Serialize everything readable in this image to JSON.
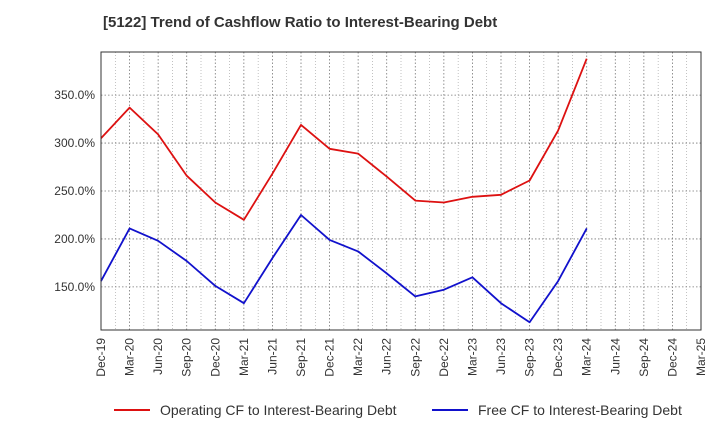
{
  "chart_data": {
    "type": "line",
    "title": "[5122]  Trend of Cashflow Ratio to Interest-Bearing Debt",
    "xlabel": "",
    "ylabel": "",
    "categories": [
      "Dec-19",
      "Mar-20",
      "Jun-20",
      "Sep-20",
      "Dec-20",
      "Mar-21",
      "Jun-21",
      "Sep-21",
      "Dec-21",
      "Mar-22",
      "Jun-22",
      "Sep-22",
      "Dec-22",
      "Mar-23",
      "Jun-23",
      "Sep-23",
      "Dec-23",
      "Mar-24",
      "Jun-24",
      "Sep-24",
      "Dec-24",
      "Mar-25"
    ],
    "ylim": [
      105,
      395
    ],
    "yticks": [
      150,
      200,
      250,
      300,
      350
    ],
    "ytick_labels": [
      "150.0%",
      "200.0%",
      "250.0%",
      "300.0%",
      "350.0%"
    ],
    "grid": true,
    "legend_position": "bottom",
    "series": [
      {
        "name": "Operating CF to Interest-Bearing Debt",
        "color": "#dd1111",
        "values": [
          305,
          337,
          309,
          266,
          238,
          220,
          268,
          319,
          294,
          289,
          265,
          240,
          238,
          244,
          246,
          261,
          313,
          388,
          null,
          null,
          null,
          null
        ]
      },
      {
        "name": "Free CF to Interest-Bearing Debt",
        "color": "#1111cc",
        "values": [
          156,
          211,
          198,
          177,
          151,
          133,
          180,
          225,
          199,
          187,
          164,
          140,
          147,
          160,
          133,
          113,
          156,
          211,
          null,
          null,
          null,
          null
        ]
      }
    ]
  }
}
